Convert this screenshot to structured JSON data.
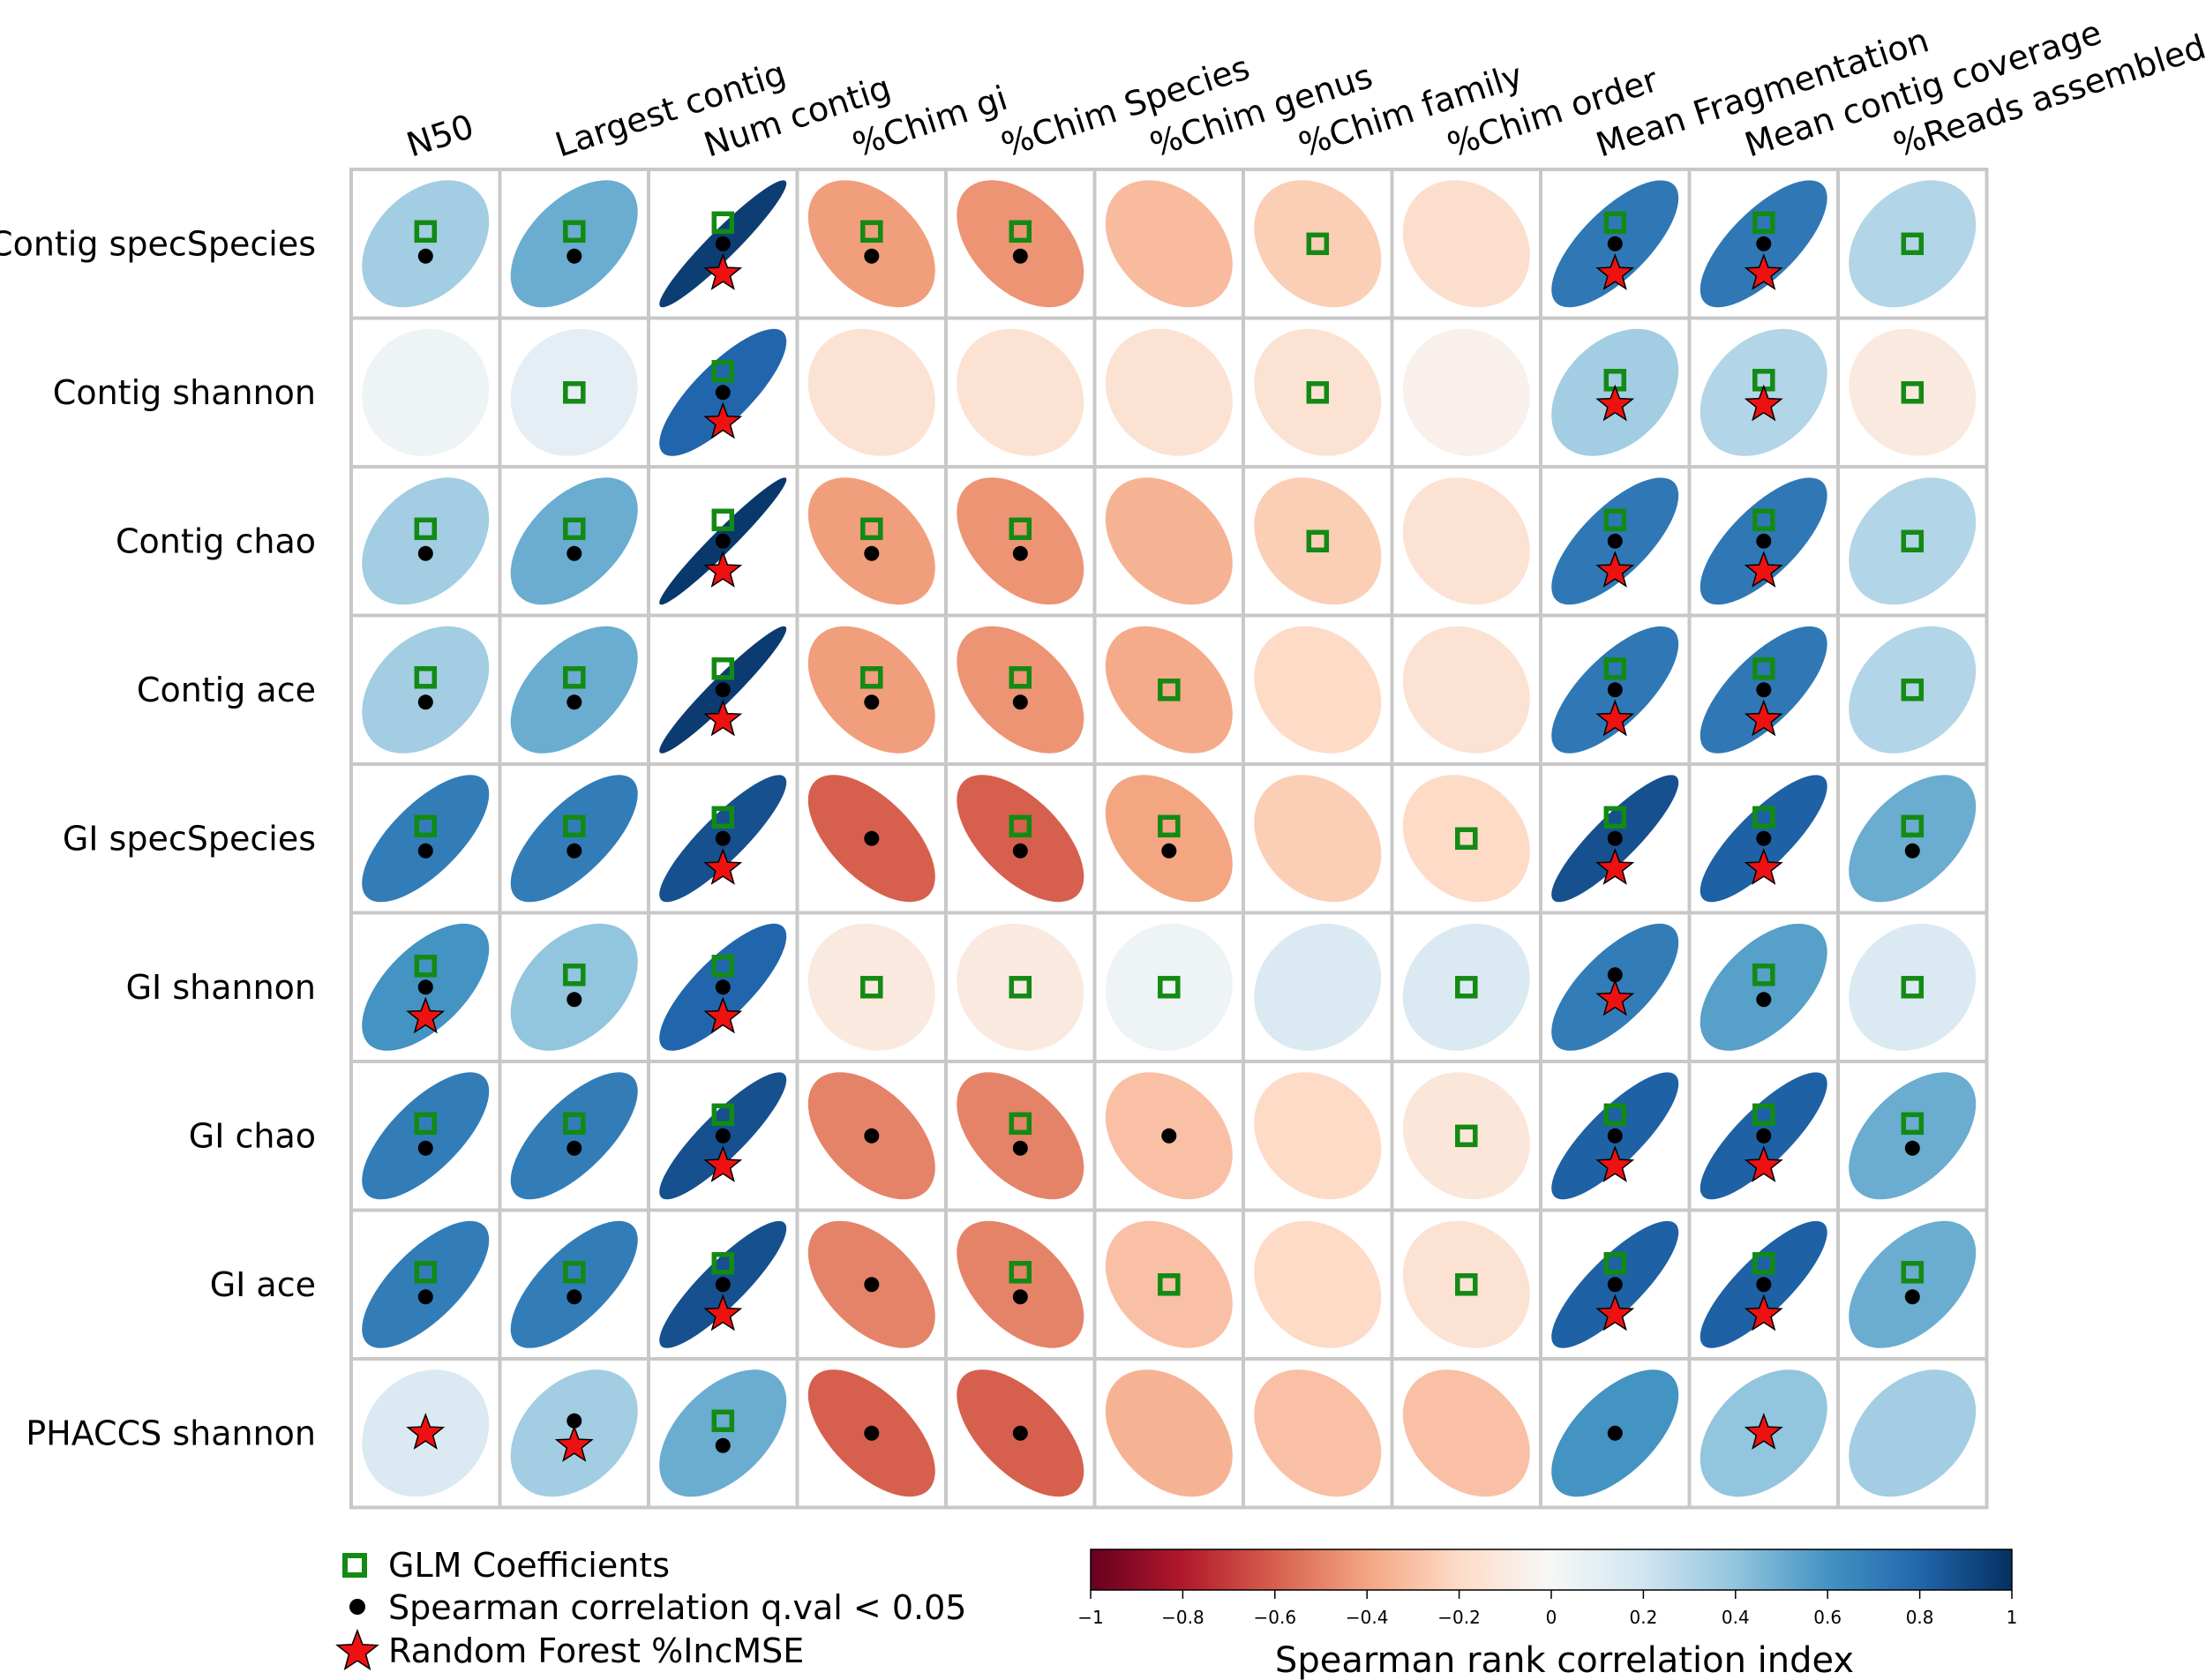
{
  "chart_data": {
    "type": "heatmap",
    "title": "",
    "columns": [
      "N50",
      "Largest  contig",
      "Num  contig",
      "%Chim gi",
      "%Chim Species",
      "%Chim genus",
      "%Chim family",
      "%Chim order",
      "Mean Fragmentation",
      "Mean contig coverage",
      "%Reads assembled"
    ],
    "rows": [
      "Contig specSpecies",
      "Contig shannon",
      "Contig chao",
      "Contig ace",
      "GI specSpecies",
      "GI shannon",
      "GI chao",
      "GI ace",
      "PHACCS shannon"
    ],
    "values": [
      [
        0.35,
        0.5,
        0.95,
        -0.42,
        -0.45,
        -0.32,
        -0.25,
        -0.18,
        0.72,
        0.72,
        0.3
      ],
      [
        0.05,
        0.1,
        0.8,
        -0.15,
        -0.15,
        -0.15,
        -0.15,
        -0.05,
        0.35,
        0.3,
        -0.1
      ],
      [
        0.35,
        0.5,
        0.97,
        -0.42,
        -0.45,
        -0.35,
        -0.25,
        -0.15,
        0.72,
        0.72,
        0.3
      ],
      [
        0.35,
        0.5,
        0.96,
        -0.42,
        -0.45,
        -0.38,
        -0.2,
        -0.15,
        0.72,
        0.72,
        0.3
      ],
      [
        0.7,
        0.7,
        0.88,
        -0.6,
        -0.6,
        -0.4,
        -0.25,
        -0.2,
        0.88,
        0.82,
        0.5
      ],
      [
        0.6,
        0.4,
        0.8,
        -0.1,
        -0.1,
        0.05,
        0.15,
        0.15,
        0.7,
        0.55,
        0.15
      ],
      [
        0.7,
        0.7,
        0.88,
        -0.5,
        -0.5,
        -0.3,
        -0.2,
        -0.12,
        0.82,
        0.82,
        0.5
      ],
      [
        0.7,
        0.7,
        0.88,
        -0.5,
        -0.5,
        -0.3,
        -0.2,
        -0.15,
        0.82,
        0.82,
        0.5
      ],
      [
        0.15,
        0.35,
        0.5,
        -0.6,
        -0.6,
        -0.35,
        -0.3,
        -0.3,
        0.6,
        0.4,
        0.35
      ]
    ],
    "glm": [
      [
        1,
        1,
        1,
        1,
        1,
        0,
        1,
        0,
        1,
        1,
        1
      ],
      [
        0,
        1,
        1,
        0,
        0,
        0,
        1,
        0,
        1,
        1,
        1
      ],
      [
        1,
        1,
        1,
        1,
        1,
        0,
        1,
        0,
        1,
        1,
        1
      ],
      [
        1,
        1,
        1,
        1,
        1,
        1,
        0,
        0,
        1,
        1,
        1
      ],
      [
        1,
        1,
        1,
        0,
        1,
        1,
        0,
        1,
        1,
        1,
        1
      ],
      [
        1,
        1,
        1,
        1,
        1,
        1,
        0,
        1,
        0,
        1,
        1
      ],
      [
        1,
        1,
        1,
        0,
        1,
        0,
        0,
        1,
        1,
        1,
        1
      ],
      [
        1,
        1,
        1,
        0,
        1,
        1,
        0,
        1,
        1,
        1,
        1
      ],
      [
        0,
        0,
        1,
        0,
        0,
        0,
        0,
        0,
        0,
        0,
        0
      ]
    ],
    "spearman": [
      [
        1,
        1,
        1,
        1,
        1,
        0,
        0,
        0,
        1,
        1,
        0
      ],
      [
        0,
        0,
        1,
        0,
        0,
        0,
        0,
        0,
        0,
        0,
        0
      ],
      [
        1,
        1,
        1,
        1,
        1,
        0,
        0,
        0,
        1,
        1,
        0
      ],
      [
        1,
        1,
        1,
        1,
        1,
        0,
        0,
        0,
        1,
        1,
        0
      ],
      [
        1,
        1,
        1,
        1,
        1,
        1,
        0,
        0,
        1,
        1,
        1
      ],
      [
        1,
        1,
        1,
        0,
        0,
        0,
        0,
        0,
        1,
        1,
        0
      ],
      [
        1,
        1,
        1,
        1,
        1,
        1,
        0,
        0,
        1,
        1,
        1
      ],
      [
        1,
        1,
        1,
        1,
        1,
        0,
        0,
        0,
        1,
        1,
        1
      ],
      [
        0,
        1,
        1,
        1,
        1,
        0,
        0,
        0,
        1,
        0,
        0
      ]
    ],
    "rf": [
      [
        0,
        0,
        1,
        0,
        0,
        0,
        0,
        0,
        1,
        1,
        0
      ],
      [
        0,
        0,
        1,
        0,
        0,
        0,
        0,
        0,
        1,
        1,
        0
      ],
      [
        0,
        0,
        1,
        0,
        0,
        0,
        0,
        0,
        1,
        1,
        0
      ],
      [
        0,
        0,
        1,
        0,
        0,
        0,
        0,
        0,
        1,
        1,
        0
      ],
      [
        0,
        0,
        1,
        0,
        0,
        0,
        0,
        0,
        1,
        1,
        0
      ],
      [
        1,
        0,
        1,
        0,
        0,
        0,
        0,
        0,
        1,
        0,
        0
      ],
      [
        0,
        0,
        1,
        0,
        0,
        0,
        0,
        0,
        1,
        1,
        0
      ],
      [
        0,
        0,
        1,
        0,
        0,
        0,
        0,
        0,
        1,
        1,
        0
      ],
      [
        1,
        1,
        0,
        0,
        0,
        0,
        0,
        0,
        0,
        1,
        0
      ]
    ],
    "legend": {
      "glm_label": "GLM Coefficients",
      "spearman_label": "Spearman correlation q.val < 0.05",
      "rf_label": "Random Forest %IncMSE"
    },
    "colorbar": {
      "label": "Spearman rank correlation index",
      "range": [
        -1,
        1
      ],
      "ticks": [
        "−1",
        "−0.8",
        "−0.6",
        "−0.4",
        "−0.2",
        "0",
        "0.2",
        "0.4",
        "0.6",
        "0.8",
        "1"
      ]
    },
    "colors": {
      "grid": "#c8c8c8",
      "glm": "#138a13",
      "spearman": "#000000",
      "rf": "#ee1111"
    }
  }
}
